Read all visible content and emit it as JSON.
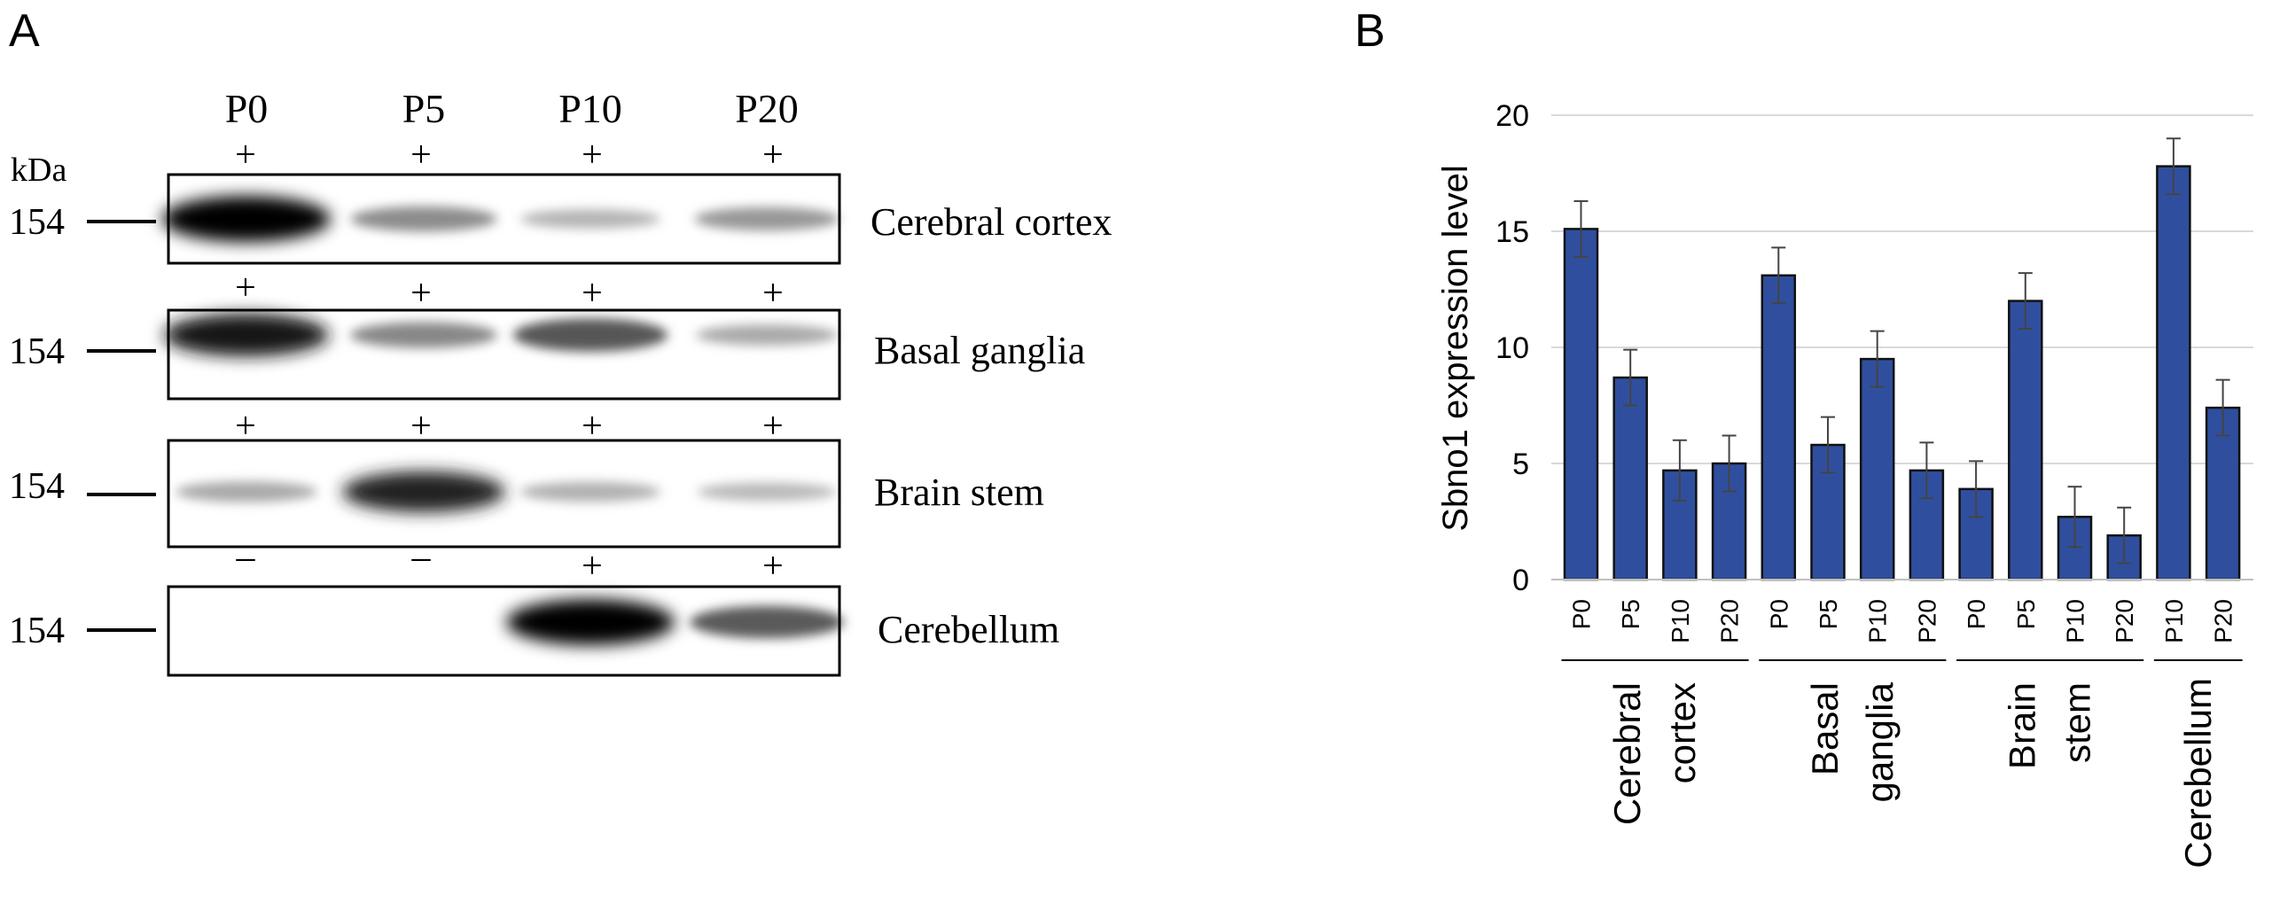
{
  "panel_a": {
    "letter": "A",
    "kda_label": "kDa",
    "timepoints": [
      "P0",
      "P5",
      "P10",
      "P20"
    ],
    "blots": [
      {
        "tissue": "Cerebral cortex",
        "marker": "154",
        "signs": [
          "+",
          "+",
          "+",
          "+"
        ],
        "band_intensity": [
          1.0,
          0.38,
          0.2,
          0.33
        ]
      },
      {
        "tissue": "Basal ganglia",
        "marker": "154",
        "signs": [
          "+",
          "+",
          "+",
          "+"
        ],
        "band_intensity": [
          0.9,
          0.4,
          0.62,
          0.25
        ]
      },
      {
        "tissue": "Brain stem",
        "marker": "154",
        "signs": [
          "+",
          "+",
          "+",
          "+"
        ],
        "band_intensity": [
          0.25,
          0.85,
          0.22,
          0.18
        ]
      },
      {
        "tissue": "Cerebellum",
        "marker": "154",
        "signs": [
          "–",
          "–",
          "+",
          "+"
        ],
        "band_intensity": [
          0.0,
          0.0,
          1.0,
          0.6
        ]
      }
    ]
  },
  "chart_data": {
    "panel_letter": "B",
    "type": "bar",
    "title": "",
    "xlabel": "",
    "ylabel": "Sbno1 expression level",
    "ylim": [
      0,
      20
    ],
    "yticks": [
      0,
      5,
      10,
      15,
      20
    ],
    "grid": true,
    "bar_color": "#2f4f9e",
    "categories": [
      "P0",
      "P5",
      "P10",
      "P20",
      "P0",
      "P5",
      "P10",
      "P20",
      "P0",
      "P5",
      "P10",
      "P20",
      "P10",
      "P20"
    ],
    "values": [
      15.1,
      8.7,
      4.7,
      5.0,
      13.1,
      5.8,
      9.5,
      4.7,
      3.9,
      12.0,
      2.7,
      1.9,
      17.8,
      7.4
    ],
    "errors": [
      1.2,
      1.2,
      1.3,
      1.2,
      1.2,
      1.2,
      1.2,
      1.2,
      1.2,
      1.2,
      1.3,
      1.2,
      1.2,
      1.2
    ],
    "groups": [
      {
        "label_lines": [
          "Cerebral",
          "cortex"
        ],
        "count": 4
      },
      {
        "label_lines": [
          "Basal",
          "ganglia"
        ],
        "count": 4
      },
      {
        "label_lines": [
          "Brain",
          "stem"
        ],
        "count": 4
      },
      {
        "label_lines": [
          "Cerebellum"
        ],
        "count": 2
      }
    ]
  }
}
